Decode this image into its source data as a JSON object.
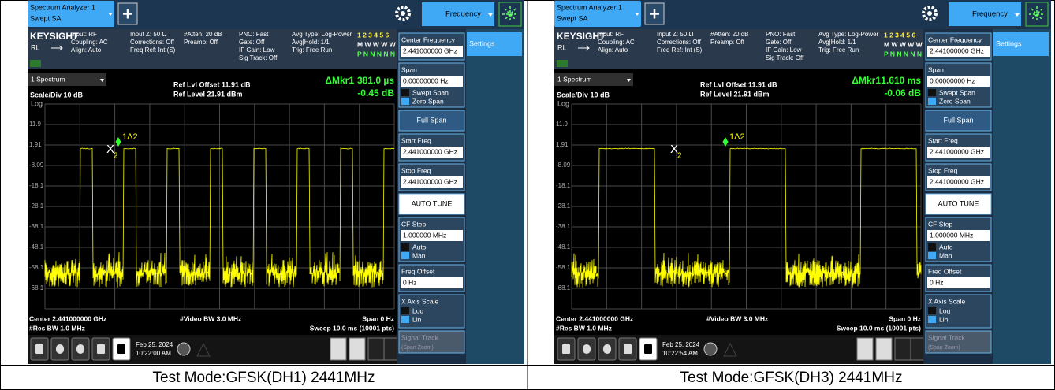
{
  "panels": [
    {
      "tab": [
        "Spectrum Analyzer 1",
        "Swept SA"
      ],
      "menu": "Frequency",
      "brand": "KEYSIGHT",
      "mode": "RL",
      "header_cols": [
        [
          "Input: RF",
          "Coupling: AC",
          "Align: Auto"
        ],
        [
          "Input Z: 50 Ω",
          "Corrections: Off",
          "Freq Ref: Int (S)"
        ],
        [
          "#Atten: 20 dB",
          "Preamp: Off"
        ],
        [
          "PNO: Fast",
          "Gate: Off",
          "IF Gain: Low",
          "Sig Track: Off"
        ],
        [
          "Avg Type: Log-Power",
          "Avg|Hold: 1/1",
          "Trig: Free Run"
        ]
      ],
      "trace_flags": [
        "1 2 3 4 5 6",
        "M W W W W W",
        "P N N N N N"
      ],
      "trace_label": "1 Spectrum",
      "ref_offset": "Ref Lvl Offset 11.91 dB",
      "ref_level": "Ref Level 21.91 dBm",
      "scale": "Scale/Div 10 dB",
      "log": "Log",
      "marker": [
        "ΔMkr1",
        "381.0 µs",
        "-0.45 dB"
      ],
      "y_labels": [
        "11.9",
        "1.91",
        "-8.09",
        "-18.1",
        "-28.1",
        "-38.1",
        "-48.1",
        "-58.1",
        "-68.1"
      ],
      "marker_labels": [
        "X",
        "2",
        "1Δ2"
      ],
      "footer": {
        "center": "Center 2.441000000 GHz",
        "res_bw": "#Res BW 1.0 MHz",
        "video_bw": "#Video BW 3.0 MHz",
        "span": "Span 0 Hz",
        "sweep": "Sweep 10.0 ms (10001 pts)"
      },
      "softkeys": [
        {
          "title": "Center Frequency",
          "value": "2.441000000 GHz"
        },
        {
          "title": "Span",
          "value": "0.00000000 Hz",
          "options": [
            "Swept Span",
            "Zero Span"
          ]
        },
        {
          "button": "Full Span"
        },
        {
          "title": "Start Freq",
          "value": "2.441000000 GHz"
        },
        {
          "title": "Stop Freq",
          "value": "2.441000000 GHz"
        },
        {
          "button": "AUTO TUNE"
        },
        {
          "title": "CF Step",
          "value": "1.000000 MHz",
          "options": [
            "Auto",
            "Man"
          ]
        },
        {
          "title": "Freq Offset",
          "value": "0 Hz"
        },
        {
          "title": "X Axis Scale",
          "options": [
            "Log",
            "Lin"
          ]
        },
        {
          "title": "Signal Track",
          "sub": "(Span Zoom)"
        }
      ],
      "settings": "Settings",
      "date": [
        "Feb 25, 2024",
        "10:22:00 AM"
      ],
      "caption": "Test Mode:GFSK(DH1) 2441MHz"
    },
    {
      "tab": [
        "Spectrum Analyzer 1",
        "Swept SA"
      ],
      "menu": "Frequency",
      "brand": "KEYSIGHT",
      "mode": "RL",
      "header_cols": [
        [
          "Input: RF",
          "Coupling: AC",
          "Align: Auto"
        ],
        [
          "Input Z: 50 Ω",
          "Corrections: Off",
          "Freq Ref: Int (S)"
        ],
        [
          "#Atten: 20 dB",
          "Preamp: Off"
        ],
        [
          "PNO: Fast",
          "Gate: Off",
          "IF Gain: Low",
          "Sig Track: Off"
        ],
        [
          "Avg Type: Log-Power",
          "Avg|Hold: 1/1",
          "Trig: Free Run"
        ]
      ],
      "trace_flags": [
        "1 2 3 4 5 6",
        "M W W W W W",
        "P N N N N N"
      ],
      "trace_label": "1 Spectrum",
      "ref_offset": "Ref Lvl Offset 11.91 dB",
      "ref_level": "Ref Level 21.91 dBm",
      "scale": "Scale/Div 10 dB",
      "log": "Log",
      "marker": [
        "ΔMkr1",
        "1.610 ms",
        "-0.06 dB"
      ],
      "y_labels": [
        "11.9",
        "1.91",
        "-8.09",
        "-18.1",
        "-28.1",
        "-38.1",
        "-48.1",
        "-58.1",
        "-68.1"
      ],
      "marker_labels": [
        "X",
        "2",
        "1Δ2"
      ],
      "footer": {
        "center": "Center 2.441000000 GHz",
        "res_bw": "#Res BW 1.0 MHz",
        "video_bw": "#Video BW 3.0 MHz",
        "span": "Span 0 Hz",
        "sweep": "Sweep 10.0 ms (10001 pts)"
      },
      "softkeys": [
        {
          "title": "Center Frequency",
          "value": "2.441000000 GHz"
        },
        {
          "title": "Span",
          "value": "0.00000000 Hz",
          "options": [
            "Swept Span",
            "Zero Span"
          ]
        },
        {
          "button": "Full Span"
        },
        {
          "title": "Start Freq",
          "value": "2.441000000 GHz"
        },
        {
          "title": "Stop Freq",
          "value": "2.441000000 GHz"
        },
        {
          "button": "AUTO TUNE"
        },
        {
          "title": "CF Step",
          "value": "1.000000 MHz",
          "options": [
            "Auto",
            "Man"
          ]
        },
        {
          "title": "Freq Offset",
          "value": "0 Hz"
        },
        {
          "title": "X Axis Scale",
          "options": [
            "Log",
            "Lin"
          ]
        },
        {
          "title": "Signal Track",
          "sub": "(Span Zoom)"
        }
      ],
      "settings": "Settings",
      "date": [
        "Feb 25, 2024",
        "10:22:54 AM"
      ],
      "caption": "Test Mode:GFSK(DH3) 2441MHz"
    }
  ]
}
